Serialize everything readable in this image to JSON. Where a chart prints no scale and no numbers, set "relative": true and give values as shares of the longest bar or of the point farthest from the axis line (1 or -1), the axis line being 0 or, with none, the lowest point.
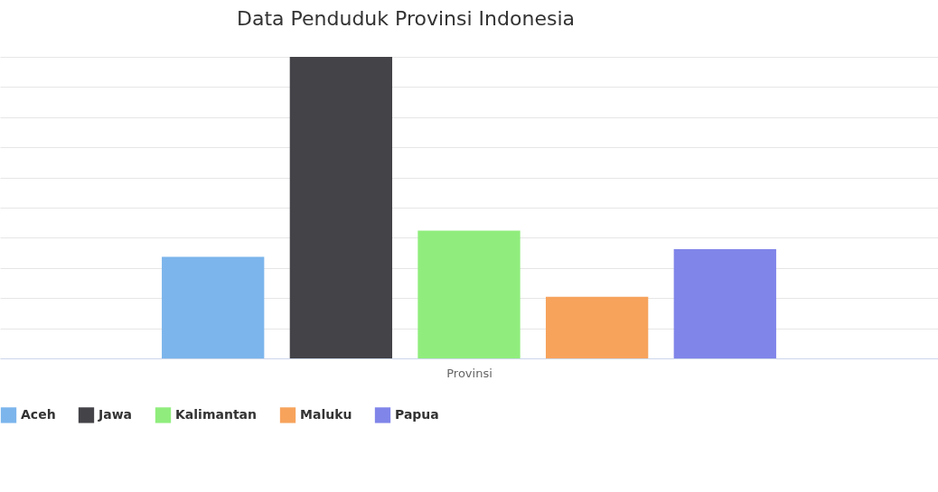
{
  "chart_data": {
    "type": "bar",
    "title": "Data Penduduk Provinsi Indonesia",
    "xlabel": "Provinsi",
    "categories": [
      null
    ],
    "relative": true,
    "grid": "y",
    "legend": "bottom",
    "series": [
      {
        "name": "Aceh",
        "color": "#7cb5ec",
        "values": [
          0.337
        ]
      },
      {
        "name": "Jawa",
        "color": "#434348",
        "values": [
          1
        ]
      },
      {
        "name": "Kalimantan",
        "color": "#90ed7d",
        "values": [
          0.424
        ]
      },
      {
        "name": "Maluku",
        "color": "#f7a35c",
        "values": [
          0.204
        ]
      },
      {
        "name": "Papua",
        "color": "#8085e9",
        "values": [
          0.362
        ]
      }
    ]
  }
}
